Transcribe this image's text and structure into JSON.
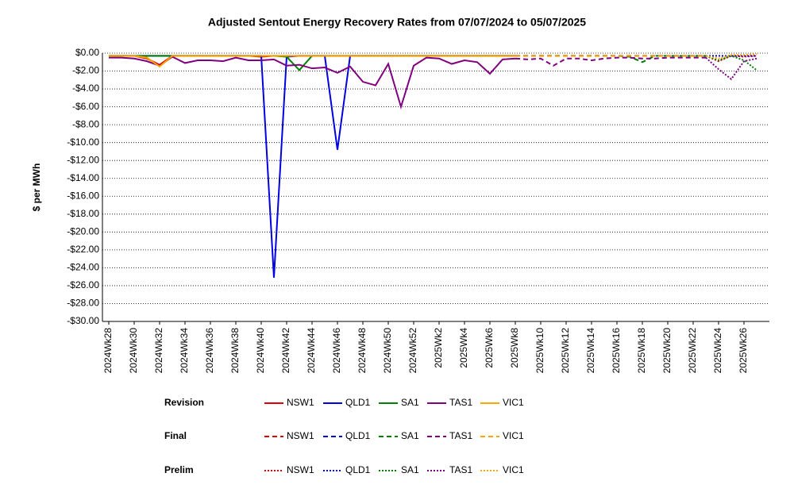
{
  "chart_data": {
    "type": "line",
    "title": "Adjusted Sentout Energy Recovery Rates from 07/07/2024 to 05/07/2025",
    "y_label": "$ per MWh",
    "categories": [
      "2024Wk28",
      null,
      "2024Wk30",
      null,
      "2024Wk32",
      null,
      "2024Wk34",
      null,
      "2024Wk36",
      null,
      "2024Wk38",
      null,
      "2024Wk40",
      null,
      "2024Wk42",
      null,
      "2024Wk44",
      null,
      "2024Wk46",
      null,
      "2024Wk48",
      null,
      "2024Wk50",
      null,
      "2024Wk52",
      null,
      "2025Wk2",
      null,
      "2025Wk4",
      null,
      "2025Wk6",
      null,
      "2025Wk8",
      null,
      "2025Wk10",
      null,
      "2025Wk12",
      null,
      "2025Wk14",
      null,
      "2025Wk16",
      null,
      "2025Wk18",
      null,
      "2025Wk20",
      null,
      "2025Wk22",
      null,
      "2025Wk24",
      null,
      "2025Wk26",
      null
    ],
    "ylim": [
      -30,
      0
    ],
    "yticks": [
      {
        "value": 0,
        "label": "$0.00"
      },
      {
        "value": -2,
        "label": "-$2.00"
      },
      {
        "value": -4,
        "label": "-$4.00"
      },
      {
        "value": -6,
        "label": "-$6.00"
      },
      {
        "value": -8,
        "label": "-$8.00"
      },
      {
        "value": -10,
        "label": "-$10.00"
      },
      {
        "value": -12,
        "label": "-$12.00"
      },
      {
        "value": -14,
        "label": "-$14.00"
      },
      {
        "value": -16,
        "label": "-$16.00"
      },
      {
        "value": -18,
        "label": "-$18.00"
      },
      {
        "value": -20,
        "label": "-$20.00"
      },
      {
        "value": -22,
        "label": "-$22.00"
      },
      {
        "value": -24,
        "label": "-$24.00"
      },
      {
        "value": -26,
        "label": "-$26.00"
      },
      {
        "value": -28,
        "label": "-$28.00"
      },
      {
        "value": -30,
        "label": "-$30.00"
      }
    ],
    "grid": true,
    "series": [
      {
        "name": "NSW1",
        "status": "Revision",
        "style": "solid",
        "color": "#e00000",
        "values": [
          -0.3,
          -0.3,
          -0.3,
          -0.6,
          -1.3,
          -0.3,
          -0.3,
          -0.3,
          -0.3,
          -0.3,
          -0.3,
          -0.3,
          -0.4,
          -0.3,
          -0.3,
          -0.3,
          -0.3,
          -0.3,
          -0.3,
          -0.3,
          -0.3,
          -0.3,
          -0.3,
          -0.3,
          -0.3,
          -0.3,
          -0.3,
          -0.3,
          -0.3,
          -0.3,
          -0.3,
          -0.3,
          -0.3,
          null,
          null,
          null,
          null,
          null,
          null,
          null,
          null,
          null,
          null,
          null,
          null,
          null,
          null,
          null,
          null,
          null,
          null,
          null
        ]
      },
      {
        "name": "QLD1",
        "status": "Revision",
        "style": "solid",
        "color": "#0000e0",
        "values": [
          -0.3,
          -0.3,
          -0.3,
          -0.3,
          -0.3,
          -0.3,
          -0.3,
          -0.3,
          -0.3,
          -0.3,
          -0.3,
          -0.3,
          -0.3,
          -25.1,
          -0.4,
          -0.3,
          -0.3,
          -0.3,
          -10.8,
          -0.3,
          -0.3,
          -0.3,
          -0.3,
          -0.3,
          -0.3,
          -0.3,
          -0.3,
          -0.3,
          -0.3,
          -0.3,
          -0.3,
          -0.3,
          -0.3,
          null,
          null,
          null,
          null,
          null,
          null,
          null,
          null,
          null,
          null,
          null,
          null,
          null,
          null,
          null,
          null,
          null,
          null,
          null
        ]
      },
      {
        "name": "SA1",
        "status": "Revision",
        "style": "solid",
        "color": "#008000",
        "values": [
          -0.3,
          -0.3,
          -0.3,
          -0.3,
          -0.3,
          -0.3,
          -0.3,
          -0.3,
          -0.3,
          -0.3,
          -0.3,
          -0.3,
          -0.3,
          -0.3,
          -0.4,
          -1.9,
          -0.3,
          -0.3,
          -0.3,
          -0.3,
          -0.3,
          -0.3,
          -0.3,
          -0.3,
          -0.3,
          -0.3,
          -0.3,
          -0.3,
          -0.3,
          -0.3,
          -0.3,
          -0.3,
          -0.3,
          null,
          null,
          null,
          null,
          null,
          null,
          null,
          null,
          null,
          null,
          null,
          null,
          null,
          null,
          null,
          null,
          null,
          null,
          null
        ]
      },
      {
        "name": "TAS1",
        "status": "Revision",
        "style": "solid",
        "color": "#800080",
        "values": [
          -0.5,
          -0.5,
          -0.6,
          -0.9,
          -1.4,
          -0.4,
          -1.1,
          -0.8,
          -0.8,
          -0.9,
          -0.5,
          -0.8,
          -0.8,
          -0.7,
          -1.4,
          -1.3,
          -1.7,
          -1.6,
          -2.2,
          -1.5,
          -3.2,
          -3.6,
          -1.2,
          -6.0,
          -1.4,
          -0.5,
          -0.6,
          -1.2,
          -0.8,
          -1.0,
          -2.3,
          -0.7,
          -0.6,
          null,
          null,
          null,
          null,
          null,
          null,
          null,
          null,
          null,
          null,
          null,
          null,
          null,
          null,
          null,
          null,
          null,
          null,
          null
        ]
      },
      {
        "name": "VIC1",
        "status": "Revision",
        "style": "solid",
        "color": "#ffa500",
        "values": [
          -0.3,
          -0.3,
          -0.3,
          -0.5,
          -1.5,
          -0.3,
          -0.3,
          -0.3,
          -0.3,
          -0.3,
          -0.3,
          -0.3,
          -0.3,
          -0.3,
          -0.3,
          -0.3,
          -0.3,
          -0.3,
          -0.3,
          -0.3,
          -0.3,
          -0.3,
          -0.3,
          -0.3,
          -0.3,
          -0.3,
          -0.3,
          -0.3,
          -0.3,
          -0.3,
          -0.3,
          -0.3,
          -0.3,
          null,
          null,
          null,
          null,
          null,
          null,
          null,
          null,
          null,
          null,
          null,
          null,
          null,
          null,
          null,
          null,
          null,
          null,
          null
        ]
      },
      {
        "name": "NSW1",
        "status": "Final",
        "style": "dashed",
        "color": "#e00000",
        "values": [
          null,
          null,
          null,
          null,
          null,
          null,
          null,
          null,
          null,
          null,
          null,
          null,
          null,
          null,
          null,
          null,
          null,
          null,
          null,
          null,
          null,
          null,
          null,
          null,
          null,
          null,
          null,
          null,
          null,
          null,
          null,
          null,
          -0.3,
          -0.3,
          -0.3,
          -0.3,
          -0.3,
          -0.3,
          -0.3,
          -0.3,
          -0.3,
          -0.3,
          -0.3,
          -0.3,
          -0.3,
          -0.3,
          -0.3,
          -0.3,
          null,
          null,
          null,
          null
        ]
      },
      {
        "name": "QLD1",
        "status": "Final",
        "style": "dashed",
        "color": "#0000e0",
        "values": [
          null,
          null,
          null,
          null,
          null,
          null,
          null,
          null,
          null,
          null,
          null,
          null,
          null,
          null,
          null,
          null,
          null,
          null,
          null,
          null,
          null,
          null,
          null,
          null,
          null,
          null,
          null,
          null,
          null,
          null,
          null,
          null,
          -0.3,
          -0.3,
          -0.3,
          -0.3,
          -0.3,
          -0.3,
          -0.3,
          -0.3,
          -0.3,
          -0.3,
          -0.3,
          -0.3,
          -0.3,
          -0.3,
          -0.3,
          -0.3,
          null,
          null,
          null,
          null
        ]
      },
      {
        "name": "SA1",
        "status": "Final",
        "style": "dashed",
        "color": "#008000",
        "values": [
          null,
          null,
          null,
          null,
          null,
          null,
          null,
          null,
          null,
          null,
          null,
          null,
          null,
          null,
          null,
          null,
          null,
          null,
          null,
          null,
          null,
          null,
          null,
          null,
          null,
          null,
          null,
          null,
          null,
          null,
          null,
          null,
          -0.3,
          -0.3,
          -0.3,
          -0.3,
          -0.3,
          -0.3,
          -0.3,
          -0.3,
          -0.3,
          -0.4,
          -1.0,
          -0.3,
          -0.3,
          -0.3,
          -0.3,
          -0.3,
          null,
          null,
          null,
          null
        ]
      },
      {
        "name": "TAS1",
        "status": "Final",
        "style": "dashed",
        "color": "#800080",
        "values": [
          null,
          null,
          null,
          null,
          null,
          null,
          null,
          null,
          null,
          null,
          null,
          null,
          null,
          null,
          null,
          null,
          null,
          null,
          null,
          null,
          null,
          null,
          null,
          null,
          null,
          null,
          null,
          null,
          null,
          null,
          null,
          null,
          -0.6,
          -0.7,
          -0.6,
          -1.4,
          -0.6,
          -0.6,
          -0.8,
          -0.6,
          -0.5,
          -0.5,
          -0.6,
          -0.6,
          -0.5,
          -0.5,
          -0.5,
          -0.5,
          null,
          null,
          null,
          null
        ]
      },
      {
        "name": "VIC1",
        "status": "Final",
        "style": "dashed",
        "color": "#ffa500",
        "values": [
          null,
          null,
          null,
          null,
          null,
          null,
          null,
          null,
          null,
          null,
          null,
          null,
          null,
          null,
          null,
          null,
          null,
          null,
          null,
          null,
          null,
          null,
          null,
          null,
          null,
          null,
          null,
          null,
          null,
          null,
          null,
          null,
          -0.3,
          -0.3,
          -0.3,
          -0.3,
          -0.3,
          -0.3,
          -0.3,
          -0.3,
          -0.3,
          -0.3,
          -0.3,
          -0.3,
          -0.3,
          -0.3,
          -0.3,
          -0.3,
          null,
          null,
          null,
          null
        ]
      },
      {
        "name": "NSW1",
        "status": "Prelim",
        "style": "dotted",
        "color": "#e00000",
        "values": [
          null,
          null,
          null,
          null,
          null,
          null,
          null,
          null,
          null,
          null,
          null,
          null,
          null,
          null,
          null,
          null,
          null,
          null,
          null,
          null,
          null,
          null,
          null,
          null,
          null,
          null,
          null,
          null,
          null,
          null,
          null,
          null,
          null,
          null,
          null,
          null,
          null,
          null,
          null,
          null,
          null,
          null,
          null,
          null,
          null,
          null,
          null,
          -0.3,
          -0.9,
          -0.3,
          -0.4,
          -0.3
        ]
      },
      {
        "name": "QLD1",
        "status": "Prelim",
        "style": "dotted",
        "color": "#0000e0",
        "values": [
          null,
          null,
          null,
          null,
          null,
          null,
          null,
          null,
          null,
          null,
          null,
          null,
          null,
          null,
          null,
          null,
          null,
          null,
          null,
          null,
          null,
          null,
          null,
          null,
          null,
          null,
          null,
          null,
          null,
          null,
          null,
          null,
          null,
          null,
          null,
          null,
          null,
          null,
          null,
          null,
          null,
          null,
          null,
          null,
          null,
          null,
          null,
          -0.3,
          -0.3,
          -0.3,
          -0.3,
          -0.3
        ]
      },
      {
        "name": "SA1",
        "status": "Prelim",
        "style": "dotted",
        "color": "#008000",
        "values": [
          null,
          null,
          null,
          null,
          null,
          null,
          null,
          null,
          null,
          null,
          null,
          null,
          null,
          null,
          null,
          null,
          null,
          null,
          null,
          null,
          null,
          null,
          null,
          null,
          null,
          null,
          null,
          null,
          null,
          null,
          null,
          null,
          null,
          null,
          null,
          null,
          null,
          null,
          null,
          null,
          null,
          null,
          null,
          null,
          null,
          null,
          null,
          -0.3,
          -0.8,
          -0.3,
          -0.8,
          -1.9
        ]
      },
      {
        "name": "TAS1",
        "status": "Prelim",
        "style": "dotted",
        "color": "#800080",
        "values": [
          null,
          null,
          null,
          null,
          null,
          null,
          null,
          null,
          null,
          null,
          null,
          null,
          null,
          null,
          null,
          null,
          null,
          null,
          null,
          null,
          null,
          null,
          null,
          null,
          null,
          null,
          null,
          null,
          null,
          null,
          null,
          null,
          null,
          null,
          null,
          null,
          null,
          null,
          null,
          null,
          null,
          null,
          null,
          null,
          null,
          null,
          null,
          -0.5,
          -1.8,
          -2.9,
          -0.9,
          -0.6
        ]
      },
      {
        "name": "VIC1",
        "status": "Prelim",
        "style": "dotted",
        "color": "#ffa500",
        "values": [
          null,
          null,
          null,
          null,
          null,
          null,
          null,
          null,
          null,
          null,
          null,
          null,
          null,
          null,
          null,
          null,
          null,
          null,
          null,
          null,
          null,
          null,
          null,
          null,
          null,
          null,
          null,
          null,
          null,
          null,
          null,
          null,
          null,
          null,
          null,
          null,
          null,
          null,
          null,
          null,
          null,
          null,
          null,
          null,
          null,
          null,
          null,
          -0.3,
          -0.6,
          -0.2,
          -0.2,
          -0.1
        ]
      }
    ]
  }
}
